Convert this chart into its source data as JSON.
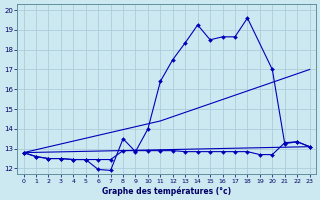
{
  "xlabel": "Graphe des températures (°c)",
  "bg_color": "#cce8f0",
  "grid_color": "#a8c8d8",
  "line_color": "#0000bb",
  "xlim": [
    -0.5,
    23.5
  ],
  "ylim": [
    11.7,
    20.3
  ],
  "yticks": [
    12,
    13,
    14,
    15,
    16,
    17,
    18,
    19,
    20
  ],
  "xticks": [
    0,
    1,
    2,
    3,
    4,
    5,
    6,
    7,
    8,
    9,
    10,
    11,
    12,
    13,
    14,
    15,
    16,
    17,
    18,
    19,
    20,
    21,
    22,
    23
  ],
  "line1_x": [
    0,
    1,
    2,
    3,
    4,
    5,
    6,
    7,
    8,
    9,
    10,
    11,
    12,
    13,
    14,
    15,
    16,
    17,
    18,
    20,
    21,
    22,
    23
  ],
  "line1_y": [
    12.8,
    12.6,
    12.5,
    12.5,
    12.45,
    12.45,
    11.95,
    11.9,
    13.5,
    12.85,
    14.0,
    16.4,
    17.5,
    18.35,
    19.25,
    18.5,
    18.65,
    18.65,
    19.6,
    17.0,
    13.25,
    13.35,
    13.1
  ],
  "line2_x": [
    0,
    1,
    2,
    3,
    4,
    5,
    6,
    7,
    8,
    9,
    10,
    11,
    12,
    13,
    14,
    15,
    16,
    17,
    18,
    19,
    20,
    21,
    22,
    23
  ],
  "line2_y": [
    12.8,
    12.6,
    12.5,
    12.5,
    12.45,
    12.45,
    12.45,
    12.45,
    12.9,
    12.9,
    12.9,
    12.9,
    12.9,
    12.85,
    12.85,
    12.85,
    12.85,
    12.85,
    12.85,
    12.7,
    12.7,
    13.3,
    13.35,
    13.1
  ],
  "line3_x": [
    0,
    11,
    23
  ],
  "line3_y": [
    12.8,
    14.4,
    17.0
  ],
  "line4_x": [
    0,
    23
  ],
  "line4_y": [
    12.8,
    13.1
  ]
}
